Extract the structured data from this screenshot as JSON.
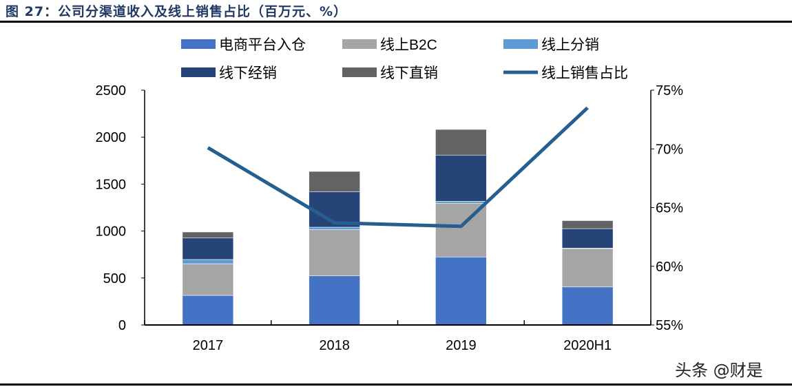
{
  "title": "图 27：公司分渠道收入及线上销售占比（百万元、%）",
  "watermark": "头条 @财是",
  "chart_data": {
    "type": "bar",
    "stacked": true,
    "categories": [
      "2017",
      "2018",
      "2019",
      "2020H1"
    ],
    "series": [
      {
        "name": "电商平台入仓",
        "values": [
          315,
          523,
          724,
          405
        ],
        "color": "#4472c4"
      },
      {
        "name": "线上B2C",
        "values": [
          337,
          492,
          572,
          408
        ],
        "color": "#a5a5a5"
      },
      {
        "name": "线上分销",
        "values": [
          45,
          26,
          21,
          5
        ],
        "color": "#5b9bd5"
      },
      {
        "name": "线下经销",
        "values": [
          229,
          376,
          492,
          208
        ],
        "color": "#264478"
      },
      {
        "name": "线下直销",
        "values": [
          64,
          218,
          273,
          85
        ],
        "color": "#636363"
      }
    ],
    "line_series": {
      "name": "线上销售占比",
      "values": [
        70.1,
        63.7,
        63.4,
        73.5
      ],
      "color": "#255e91",
      "axis": "right"
    },
    "ylim": [
      0,
      2500
    ],
    "yticks": [
      "0",
      "500",
      "1000",
      "1500",
      "2000",
      "2500"
    ],
    "y2lim": [
      55,
      75
    ],
    "y2ticks": [
      "55%",
      "60%",
      "65%",
      "70%",
      "75%"
    ],
    "grid": false,
    "legend_position": "top"
  }
}
